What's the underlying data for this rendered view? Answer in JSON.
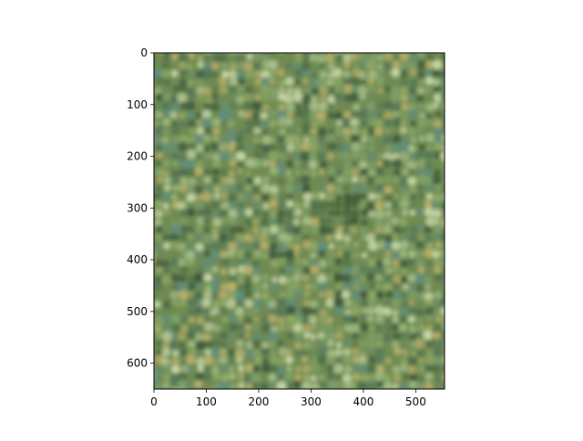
{
  "chart_data": {
    "type": "heatmap",
    "title": "",
    "xlabel": "",
    "ylabel": "",
    "xlim": [
      0,
      555
    ],
    "ylim": [
      650,
      0
    ],
    "x_ticks": [
      0,
      100,
      200,
      300,
      400,
      500
    ],
    "y_ticks": [
      0,
      100,
      200,
      300,
      400,
      500,
      600
    ],
    "x_tick_labels": [
      "0",
      "100",
      "200",
      "300",
      "400",
      "500"
    ],
    "y_tick_labels": [
      "0",
      "100",
      "200",
      "300",
      "400",
      "500",
      "600"
    ],
    "grid": false,
    "legend": "none",
    "colors": {
      "base": "#6f8a52",
      "dark": "#3f5a3c",
      "light": "#c8d8a8",
      "teal": "#5f8f80",
      "yellow": "#b9b06a"
    }
  }
}
